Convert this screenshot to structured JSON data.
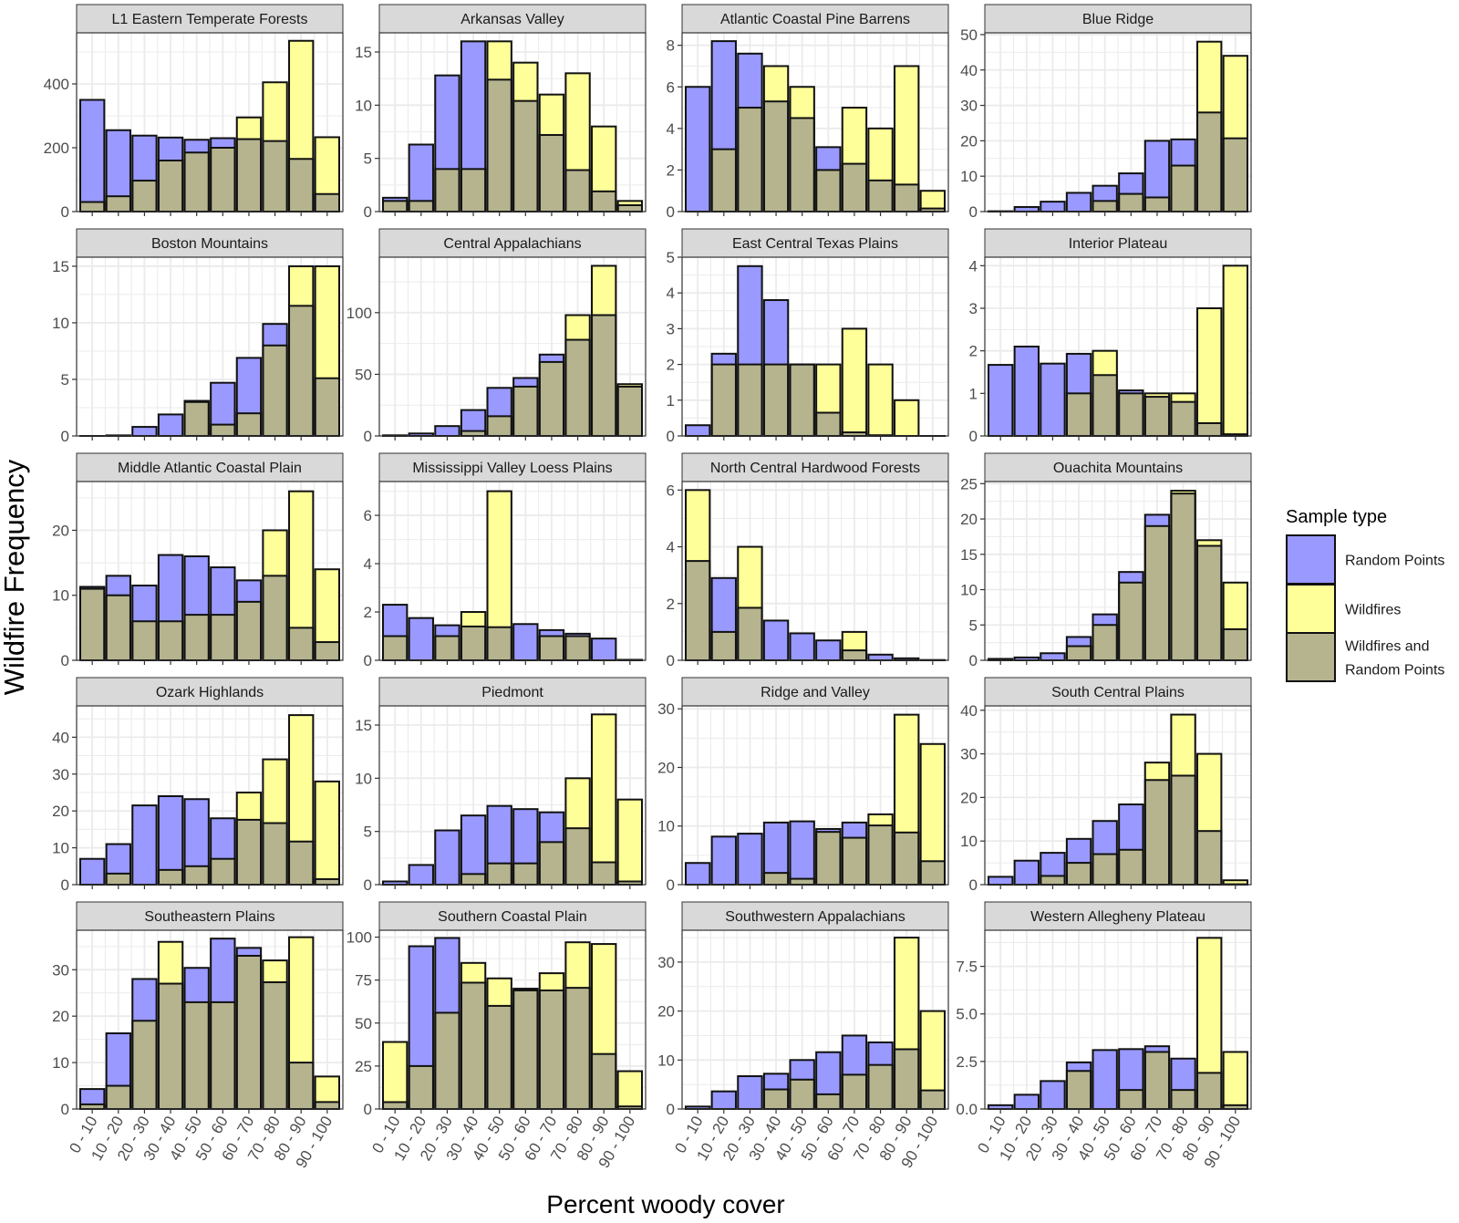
{
  "xlabel": "Percent woody cover",
  "ylabel": "Wildfire Frequency",
  "legend": {
    "title": "Sample type",
    "items": [
      {
        "label_lines": [
          "Random Points"
        ],
        "color": "#9999ff"
      },
      {
        "label_lines": [
          "Wildfires"
        ],
        "color": "#ffff99"
      },
      {
        "label_lines": [
          "Wildfires and",
          "Random Points"
        ],
        "color": "#b5b48f"
      }
    ]
  },
  "colors": {
    "random": "#9999ff",
    "wildfire": "#ffff99",
    "overlap": "#b5b48f",
    "panel_strip": "#d9d9d9",
    "grid": "#ebebeb"
  },
  "categories": [
    "0 - 10",
    "10 - 20",
    "20 - 30",
    "30 - 40",
    "40 - 50",
    "50 - 60",
    "60 - 70",
    "70 - 80",
    "80 - 90",
    "90 - 100"
  ],
  "chart_data": {
    "type": "bar",
    "facets": true,
    "legend_position": "right",
    "series_names": [
      "Random Points",
      "Wildfires"
    ],
    "panels": [
      {
        "title": "L1 Eastern Temperate Forests",
        "ylim": [
          0,
          560
        ],
        "yticks": [
          0,
          200,
          400
        ],
        "ytick_labels": [
          "0",
          "200",
          "400"
        ],
        "random": [
          350,
          255,
          238,
          232,
          225,
          230,
          227,
          221,
          165,
          55
        ],
        "wildfire": [
          30,
          48,
          97,
          160,
          185,
          200,
          295,
          405,
          535,
          233
        ]
      },
      {
        "title": "Arkansas Valley",
        "ylim": [
          0,
          16.8
        ],
        "yticks": [
          0,
          5,
          10,
          15
        ],
        "ytick_labels": [
          "0",
          "5",
          "10",
          "15"
        ],
        "random": [
          1.3,
          6.3,
          12.8,
          16.0,
          12.4,
          10.4,
          7.2,
          3.9,
          1.9,
          0.6
        ],
        "wildfire": [
          1,
          1,
          4,
          4,
          16,
          14,
          11,
          13,
          8,
          1
        ]
      },
      {
        "title": "Atlantic Coastal Pine Barrens",
        "ylim": [
          0,
          8.6
        ],
        "yticks": [
          0,
          2,
          4,
          6,
          8
        ],
        "ytick_labels": [
          "0",
          "2",
          "4",
          "6",
          "8"
        ],
        "random": [
          6.0,
          8.2,
          7.6,
          5.3,
          4.5,
          3.1,
          2.3,
          1.5,
          1.3,
          0.15
        ],
        "wildfire": [
          0,
          3,
          5,
          7,
          6,
          2,
          5,
          4,
          7,
          1
        ]
      },
      {
        "title": "Blue Ridge",
        "ylim": [
          0,
          50.5
        ],
        "yticks": [
          0,
          10,
          20,
          30,
          40,
          50
        ],
        "ytick_labels": [
          "0",
          "10",
          "20",
          "30",
          "40",
          "50"
        ],
        "random": [
          0.1,
          1.3,
          2.8,
          5.3,
          7.3,
          10.8,
          20,
          20.4,
          28,
          20.7
        ],
        "wildfire": [
          0,
          0,
          0,
          0,
          3,
          5,
          4,
          13,
          48,
          44
        ]
      },
      {
        "title": "Boston Mountains",
        "ylim": [
          0,
          15.8
        ],
        "yticks": [
          0,
          5,
          10,
          15
        ],
        "ytick_labels": [
          "0",
          "5",
          "10",
          "15"
        ],
        "random": [
          0,
          0.05,
          0.8,
          1.9,
          3.1,
          4.7,
          6.9,
          9.9,
          11.5,
          5.1
        ],
        "wildfire": [
          0,
          0,
          0,
          0,
          3,
          1,
          2,
          8,
          15,
          15
        ]
      },
      {
        "title": "Central Appalachians",
        "ylim": [
          0,
          145
        ],
        "yticks": [
          0,
          50,
          100
        ],
        "ytick_labels": [
          "0",
          "50",
          "100"
        ],
        "random": [
          0.5,
          2,
          8,
          21,
          39,
          47,
          66,
          78,
          98,
          40
        ],
        "wildfire": [
          0,
          0,
          0,
          4,
          16,
          40,
          60,
          98,
          138,
          42
        ]
      },
      {
        "title": "East Central Texas Plains",
        "ylim": [
          0,
          5
        ],
        "yticks": [
          0,
          1,
          2,
          3,
          4,
          5
        ],
        "ytick_labels": [
          "0",
          "1",
          "2",
          "3",
          "4",
          "5"
        ],
        "random": [
          0.3,
          2.3,
          4.75,
          3.8,
          2.0,
          0.65,
          0.1,
          0.02,
          0,
          0
        ],
        "wildfire": [
          0,
          2,
          2,
          2,
          2,
          2,
          3,
          2,
          1,
          0
        ]
      },
      {
        "title": "Interior Plateau",
        "ylim": [
          0,
          4.2
        ],
        "yticks": [
          0,
          1,
          2,
          3,
          4
        ],
        "ytick_labels": [
          "0",
          "1",
          "2",
          "3",
          "4"
        ],
        "random": [
          1.67,
          2.1,
          1.7,
          1.93,
          1.43,
          1.07,
          0.92,
          0.8,
          0.3,
          0.04
        ],
        "wildfire": [
          0,
          0,
          0,
          1,
          2,
          1,
          1,
          1,
          3,
          4
        ]
      },
      {
        "title": "Middle Atlantic Coastal Plain",
        "ylim": [
          0,
          27.5
        ],
        "yticks": [
          0,
          10,
          20
        ],
        "ytick_labels": [
          "0",
          "10",
          "20"
        ],
        "random": [
          11.3,
          13,
          11.5,
          16.2,
          16,
          14.3,
          12.3,
          13,
          5,
          2.8
        ],
        "wildfire": [
          11,
          10,
          6,
          6,
          7,
          7,
          9,
          20,
          26,
          14
        ]
      },
      {
        "title": "Mississippi Valley Loess Plains",
        "ylim": [
          0,
          7.4
        ],
        "yticks": [
          0,
          2,
          4,
          6
        ],
        "ytick_labels": [
          "0",
          "2",
          "4",
          "6"
        ],
        "random": [
          2.3,
          1.75,
          1.45,
          1.4,
          1.37,
          1.5,
          1.25,
          1.1,
          0.9,
          0.02
        ],
        "wildfire": [
          1,
          0,
          1,
          2,
          7,
          0,
          1,
          1,
          0,
          0
        ]
      },
      {
        "title": "North Central Hardwood Forests",
        "ylim": [
          0,
          6.3
        ],
        "yticks": [
          0,
          2,
          4,
          6
        ],
        "ytick_labels": [
          "0",
          "2",
          "4",
          "6"
        ],
        "random": [
          3.5,
          2.9,
          1.85,
          1.4,
          0.95,
          0.7,
          0.35,
          0.2,
          0.07,
          0.01
        ],
        "wildfire": [
          6,
          1,
          4,
          0,
          0,
          0,
          1,
          0,
          0,
          0
        ]
      },
      {
        "title": "Ouachita Mountains",
        "ylim": [
          0,
          25.3
        ],
        "yticks": [
          0,
          5,
          10,
          15,
          20,
          25
        ],
        "ytick_labels": [
          "0",
          "5",
          "10",
          "15",
          "20",
          "25"
        ],
        "random": [
          0.2,
          0.4,
          1,
          3.3,
          6.5,
          12.5,
          20.6,
          23.6,
          16.2,
          4.4
        ],
        "wildfire": [
          0,
          0,
          0,
          2,
          5,
          11,
          19,
          24,
          17,
          11
        ]
      },
      {
        "title": "Ozark Highlands",
        "ylim": [
          0,
          48.5
        ],
        "yticks": [
          0,
          10,
          20,
          30,
          40
        ],
        "ytick_labels": [
          "0",
          "10",
          "20",
          "30",
          "40"
        ],
        "random": [
          7,
          11,
          21.5,
          24,
          23.2,
          18,
          17.6,
          16.7,
          11.7,
          1.5
        ],
        "wildfire": [
          0,
          3,
          0,
          4,
          5,
          7,
          25,
          34,
          46,
          28
        ]
      },
      {
        "title": "Piedmont",
        "ylim": [
          0,
          16.8
        ],
        "yticks": [
          0,
          5,
          10,
          15
        ],
        "ytick_labels": [
          "0",
          "5",
          "10",
          "15"
        ],
        "random": [
          0.3,
          1.85,
          5.1,
          6.5,
          7.4,
          7.1,
          6.8,
          5.3,
          2.1,
          0.3
        ],
        "wildfire": [
          0,
          0,
          0,
          1,
          2,
          2,
          4,
          10,
          16,
          8
        ]
      },
      {
        "title": "Ridge and Valley",
        "ylim": [
          0,
          30.5
        ],
        "yticks": [
          0,
          10,
          20,
          30
        ],
        "ytick_labels": [
          "0",
          "10",
          "20",
          "30"
        ],
        "random": [
          3.7,
          8.2,
          8.7,
          10.6,
          10.8,
          9.5,
          10.6,
          10.1,
          8.9,
          4
        ],
        "wildfire": [
          0,
          0,
          0,
          2,
          1,
          9,
          8,
          12,
          29,
          24
        ]
      },
      {
        "title": "South Central Plains",
        "ylim": [
          0,
          41
        ],
        "yticks": [
          0,
          10,
          20,
          30,
          40
        ],
        "ytick_labels": [
          "0",
          "10",
          "20",
          "30",
          "40"
        ],
        "random": [
          1.8,
          5.5,
          7.3,
          10.5,
          14.6,
          18.4,
          24,
          25,
          12.3,
          0.1
        ],
        "wildfire": [
          0,
          0,
          2,
          5,
          7,
          8,
          28,
          39,
          30,
          1
        ]
      },
      {
        "title": "Southeastern Plains",
        "ylim": [
          0,
          38.5
        ],
        "yticks": [
          0,
          10,
          20,
          30
        ],
        "ytick_labels": [
          "0",
          "10",
          "20",
          "30"
        ],
        "random": [
          4.3,
          16.3,
          28,
          27,
          30.4,
          36.7,
          34.7,
          27.3,
          10,
          1.5
        ],
        "wildfire": [
          1,
          5,
          19,
          36,
          23,
          23,
          33,
          32,
          37,
          7
        ]
      },
      {
        "title": "Southern Coastal Plain",
        "ylim": [
          0,
          104
        ],
        "yticks": [
          0,
          25,
          50,
          75,
          100
        ],
        "ytick_labels": [
          "0",
          "25",
          "50",
          "75",
          "100"
        ],
        "random": [
          4,
          94.7,
          99.5,
          73.5,
          60,
          70,
          69,
          70.5,
          32,
          1.5
        ],
        "wildfire": [
          39,
          25,
          56,
          85,
          76,
          69,
          79,
          97,
          96,
          22
        ]
      },
      {
        "title": "Southwestern Appalachians",
        "ylim": [
          0,
          36.5
        ],
        "yticks": [
          0,
          10,
          20,
          30
        ],
        "ytick_labels": [
          "0",
          "10",
          "20",
          "30"
        ],
        "random": [
          0.5,
          3.6,
          6.7,
          7.2,
          10,
          11.6,
          15,
          13.6,
          12.2,
          3.8
        ],
        "wildfire": [
          0,
          0,
          0,
          4,
          6,
          3,
          7,
          9,
          35,
          20
        ]
      },
      {
        "title": "Western Allegheny Plateau",
        "ylim": [
          0,
          9.4
        ],
        "yticks": [
          0,
          2.5,
          5,
          7.5
        ],
        "ytick_labels": [
          "0.0",
          "2.5",
          "5.0",
          "7.5"
        ],
        "random": [
          0.2,
          0.75,
          1.47,
          2.45,
          3.1,
          3.15,
          3.3,
          2.65,
          1.9,
          0.2
        ],
        "wildfire": [
          0,
          0,
          0,
          2,
          0,
          1,
          3,
          1,
          9,
          3
        ]
      }
    ]
  }
}
